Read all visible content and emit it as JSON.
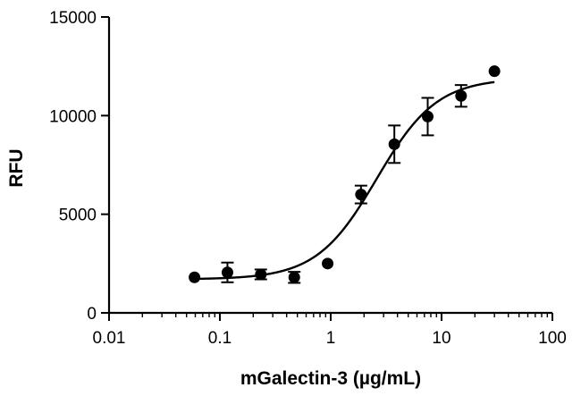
{
  "chart_data": {
    "type": "scatter",
    "xlabel": "mGalectin-3 (µg/mL)",
    "ylabel": "RFU",
    "xscale": "log",
    "xlim": [
      0.01,
      100
    ],
    "ylim": [
      0,
      15000
    ],
    "xticks": [
      {
        "value": 0.01,
        "label": "0.01"
      },
      {
        "value": 0.1,
        "label": "0.1"
      },
      {
        "value": 1,
        "label": "1"
      },
      {
        "value": 10,
        "label": "10"
      },
      {
        "value": 100,
        "label": "100"
      }
    ],
    "yticks": [
      {
        "value": 0,
        "label": "0"
      },
      {
        "value": 5000,
        "label": "5000"
      },
      {
        "value": 10000,
        "label": "10000"
      },
      {
        "value": 15000,
        "label": "15000"
      }
    ],
    "grid": false,
    "legend": "none",
    "points": [
      {
        "x": 0.059,
        "y": 1800,
        "err": 0
      },
      {
        "x": 0.117,
        "y": 2050,
        "err": 500
      },
      {
        "x": 0.234,
        "y": 1950,
        "err": 250
      },
      {
        "x": 0.469,
        "y": 1800,
        "err": 280
      },
      {
        "x": 0.938,
        "y": 2500,
        "err": 0
      },
      {
        "x": 1.875,
        "y": 6000,
        "err": 450
      },
      {
        "x": 3.75,
        "y": 8550,
        "err": 950
      },
      {
        "x": 7.5,
        "y": 9950,
        "err": 950
      },
      {
        "x": 15,
        "y": 11000,
        "err": 550
      },
      {
        "x": 30,
        "y": 12250,
        "err": 0
      }
    ],
    "fit": {
      "type": "4PL",
      "bottom": 1700,
      "top": 11900,
      "ec50": 2.6,
      "hill": 1.6
    },
    "colors": {
      "marker": "#000000",
      "line": "#000000"
    }
  }
}
